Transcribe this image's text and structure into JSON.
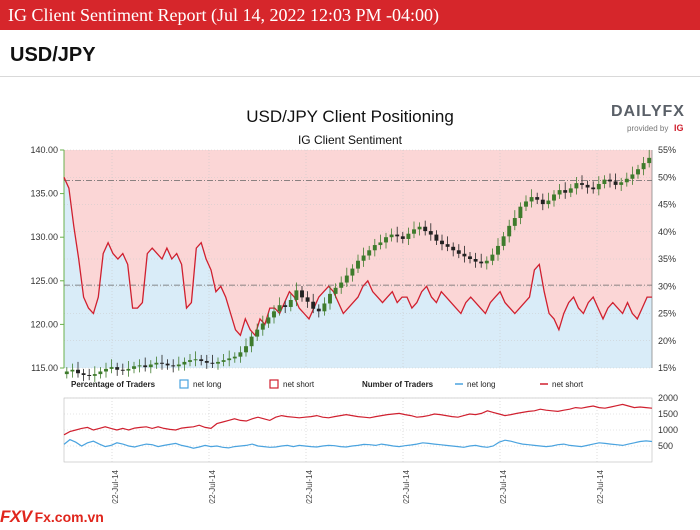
{
  "header": {
    "banner_title": "IG Client Sentiment Report (Jul 14, 2022 12:03 PM -04:00)",
    "pair": "USD/JPY"
  },
  "watermark": {
    "logo": "FXV",
    "site": "Fx.com.vn"
  },
  "chart_data": [
    {
      "type": "candlestick+line",
      "title": "USD/JPY Client Positioning",
      "subtitle": "IG Client Sentiment",
      "brand": {
        "main": "DAILYFX",
        "sub": "provided by",
        "badge": "IG"
      },
      "y_left": {
        "min": 115,
        "max": 140,
        "ticks": [
          "115.00",
          "120.00",
          "125.00",
          "130.00",
          "135.00",
          "140.00"
        ]
      },
      "y_right": {
        "min": 15,
        "max": 55,
        "ticks": [
          "15%",
          "20%",
          "25%",
          "30%",
          "35%",
          "40%",
          "45%",
          "50%",
          "55%"
        ]
      },
      "reference_levels": [
        136.5,
        124.5
      ],
      "net_long_pct": [
        50,
        48,
        41,
        35,
        28,
        26,
        25,
        28,
        36,
        38,
        36,
        35,
        36,
        34,
        26,
        26,
        27,
        36,
        37,
        36,
        35,
        37,
        35,
        36,
        34,
        26,
        27,
        37,
        38,
        35,
        33,
        29,
        30,
        28,
        25,
        22,
        21,
        24,
        22,
        21,
        24,
        23,
        26,
        26,
        25,
        27,
        29,
        28,
        26,
        25,
        24,
        26,
        28,
        29,
        30,
        29,
        27,
        25,
        26,
        27,
        28,
        30,
        31,
        29,
        28,
        27,
        28,
        29,
        27,
        28,
        28,
        26,
        27,
        29,
        30,
        28,
        27,
        29,
        28,
        27,
        26,
        25,
        27,
        28,
        27,
        26,
        25,
        27,
        28,
        29,
        27,
        26,
        25,
        26,
        27,
        28,
        33,
        34,
        29,
        25,
        24,
        22,
        25,
        27,
        28,
        26,
        25,
        27,
        28,
        26,
        24,
        26,
        27,
        26,
        25,
        27,
        25,
        24,
        26,
        28,
        28
      ],
      "price_close": [
        114.6,
        114.8,
        114.4,
        114.2,
        114.1,
        114.3,
        114.6,
        114.9,
        115.1,
        114.8,
        114.7,
        114.9,
        115.2,
        115.3,
        115.1,
        115.4,
        115.6,
        115.5,
        115.3,
        115.2,
        115.4,
        115.7,
        115.9,
        116.0,
        115.8,
        115.6,
        115.5,
        115.7,
        115.9,
        116.1,
        116.3,
        116.8,
        117.5,
        118.6,
        119.4,
        120.1,
        120.8,
        121.5,
        122.2,
        122.0,
        122.8,
        123.9,
        123.1,
        122.6,
        121.8,
        121.5,
        122.4,
        123.5,
        124.2,
        124.8,
        125.6,
        126.4,
        127.3,
        127.9,
        128.5,
        129.1,
        129.4,
        130.0,
        130.3,
        130.1,
        129.8,
        130.4,
        130.9,
        131.2,
        130.7,
        130.3,
        129.6,
        129.2,
        128.9,
        128.5,
        128.1,
        127.8,
        127.5,
        127.2,
        127.0,
        127.3,
        128.0,
        129.0,
        130.1,
        131.3,
        132.2,
        133.5,
        134.1,
        134.6,
        134.3,
        133.8,
        134.2,
        134.9,
        135.4,
        135.1,
        135.6,
        136.2,
        136.0,
        135.7,
        135.5,
        136.1,
        136.6,
        136.4,
        136.0,
        136.3,
        136.7,
        137.2,
        137.8,
        138.5,
        139.1
      ],
      "legend_pct": {
        "title": "Percentage of Traders",
        "long": "net long",
        "short": "net short"
      },
      "legend_num": {
        "title": "Number of Traders",
        "long": "net long",
        "short": "net short"
      },
      "lower": {
        "y_ticks": [
          "500",
          "1000",
          "1500",
          "2000"
        ],
        "ymin": 0,
        "ymax": 2000,
        "net_long": [
          550,
          700,
          620,
          500,
          600,
          650,
          560,
          480,
          520,
          600,
          560,
          500,
          470,
          520,
          560,
          540,
          480,
          520,
          550,
          580,
          520,
          480,
          430,
          470,
          520,
          480,
          500,
          460,
          440,
          480,
          500,
          520,
          560,
          500,
          480,
          460,
          470,
          500,
          520,
          480,
          520,
          500,
          480,
          470,
          500,
          520,
          510,
          480,
          470,
          500,
          520,
          550,
          540,
          520,
          560,
          530,
          500,
          480,
          510,
          530,
          560,
          600,
          580,
          560,
          540,
          520,
          500,
          480,
          460,
          500,
          520,
          480,
          460,
          500,
          620,
          680,
          650,
          600,
          560,
          540,
          520,
          500,
          480,
          500,
          540,
          560,
          520,
          500,
          480,
          520,
          560,
          600,
          580,
          560,
          540,
          520,
          560,
          600,
          640,
          660,
          640
        ],
        "net_short": [
          850,
          950,
          1000,
          1050,
          1080,
          1000,
          1050,
          1100,
          1050,
          1000,
          1050,
          1000,
          1060,
          1080,
          1100,
          1050,
          1100,
          1050,
          1020,
          1000,
          1060,
          1080,
          1100,
          1150,
          1080,
          1050,
          1200,
          1250,
          1300,
          1350,
          1300,
          1280,
          1350,
          1400,
          1350,
          1300,
          1400,
          1450,
          1420,
          1400,
          1380,
          1400,
          1420,
          1450,
          1400,
          1380,
          1420,
          1450,
          1480,
          1450,
          1420,
          1400,
          1380,
          1420,
          1450,
          1480,
          1500,
          1520,
          1480,
          1450,
          1400,
          1420,
          1450,
          1500,
          1480,
          1450,
          1420,
          1400,
          1450,
          1500,
          1480,
          1520,
          1600,
          1550,
          1500,
          1450,
          1480,
          1520,
          1550,
          1580,
          1600,
          1650,
          1620,
          1600,
          1580,
          1620,
          1650,
          1700,
          1680,
          1720,
          1750,
          1700,
          1680,
          1720,
          1760,
          1800,
          1750,
          1700,
          1720,
          1700,
          1680
        ],
        "x_labels": [
          "2022-Jul-14",
          "2022-Jul-14",
          "2022-Jul-14",
          "2022-Jul-14",
          "2022-Jul-14",
          "2022-Jul-14"
        ]
      },
      "colors": {
        "long": "#4aa3df",
        "short": "#d0202f",
        "candle_up": "#3e7b2c",
        "candle_down": "#222222",
        "axis_green": "#6ab04c"
      }
    }
  ]
}
